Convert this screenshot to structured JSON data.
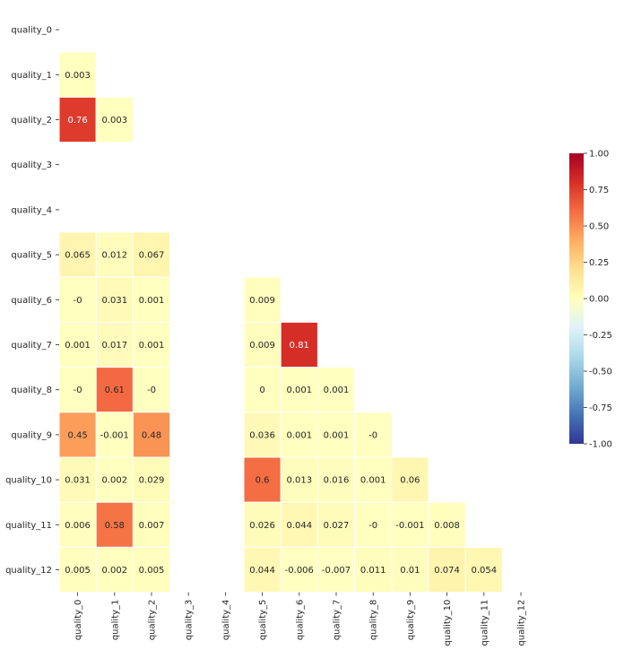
{
  "chart_data": {
    "type": "heatmap",
    "title": "",
    "xlabel": "",
    "ylabel": "",
    "mask": "upper-triangle-including-diagonal",
    "labels": [
      "quality_0",
      "quality_1",
      "quality_2",
      "quality_3",
      "quality_4",
      "quality_5",
      "quality_6",
      "quality_7",
      "quality_8",
      "quality_9",
      "quality_10",
      "quality_11",
      "quality_12"
    ],
    "colorscale": "RdYlBu_r",
    "vmin": -1.0,
    "vmax": 1.0,
    "colorbar_ticks": [
      "1.00",
      "0.75",
      "0.50",
      "0.25",
      "0.00",
      "-0.25",
      "-0.50",
      "-0.75",
      "-1.00"
    ],
    "colorbar_tick_values": [
      1.0,
      0.75,
      0.5,
      0.25,
      0.0,
      -0.25,
      -0.5,
      -0.75,
      -1.0
    ],
    "cells": [
      {
        "row": 1,
        "col": 0,
        "label": "0.003"
      },
      {
        "row": 2,
        "col": 0,
        "label": "0.76"
      },
      {
        "row": 2,
        "col": 1,
        "label": "0.003"
      },
      {
        "row": 5,
        "col": 0,
        "label": "0.065"
      },
      {
        "row": 5,
        "col": 1,
        "label": "0.012"
      },
      {
        "row": 5,
        "col": 2,
        "label": "0.067"
      },
      {
        "row": 6,
        "col": 0,
        "label": "-0"
      },
      {
        "row": 6,
        "col": 1,
        "label": "0.031"
      },
      {
        "row": 6,
        "col": 2,
        "label": "0.001"
      },
      {
        "row": 6,
        "col": 5,
        "label": "0.009"
      },
      {
        "row": 7,
        "col": 0,
        "label": "0.001"
      },
      {
        "row": 7,
        "col": 1,
        "label": "0.017"
      },
      {
        "row": 7,
        "col": 2,
        "label": "0.001"
      },
      {
        "row": 7,
        "col": 5,
        "label": "0.009"
      },
      {
        "row": 7,
        "col": 6,
        "label": "0.81"
      },
      {
        "row": 8,
        "col": 0,
        "label": "-0"
      },
      {
        "row": 8,
        "col": 1,
        "label": "0.61"
      },
      {
        "row": 8,
        "col": 2,
        "label": "-0"
      },
      {
        "row": 8,
        "col": 5,
        "label": "0"
      },
      {
        "row": 8,
        "col": 6,
        "label": "0.001"
      },
      {
        "row": 8,
        "col": 7,
        "label": "0.001"
      },
      {
        "row": 9,
        "col": 0,
        "label": "0.45"
      },
      {
        "row": 9,
        "col": 1,
        "label": "-0.001"
      },
      {
        "row": 9,
        "col": 2,
        "label": "0.48"
      },
      {
        "row": 9,
        "col": 5,
        "label": "0.036"
      },
      {
        "row": 9,
        "col": 6,
        "label": "0.001"
      },
      {
        "row": 9,
        "col": 7,
        "label": "0.001"
      },
      {
        "row": 9,
        "col": 8,
        "label": "-0"
      },
      {
        "row": 10,
        "col": 0,
        "label": "0.031"
      },
      {
        "row": 10,
        "col": 1,
        "label": "0.002"
      },
      {
        "row": 10,
        "col": 2,
        "label": "0.029"
      },
      {
        "row": 10,
        "col": 5,
        "label": "0.6"
      },
      {
        "row": 10,
        "col": 6,
        "label": "0.013"
      },
      {
        "row": 10,
        "col": 7,
        "label": "0.016"
      },
      {
        "row": 10,
        "col": 8,
        "label": "0.001"
      },
      {
        "row": 10,
        "col": 9,
        "label": "0.06"
      },
      {
        "row": 11,
        "col": 0,
        "label": "0.006"
      },
      {
        "row": 11,
        "col": 1,
        "label": "0.58"
      },
      {
        "row": 11,
        "col": 2,
        "label": "0.007"
      },
      {
        "row": 11,
        "col": 5,
        "label": "0.026"
      },
      {
        "row": 11,
        "col": 6,
        "label": "0.044"
      },
      {
        "row": 11,
        "col": 7,
        "label": "0.027"
      },
      {
        "row": 11,
        "col": 8,
        "label": "-0"
      },
      {
        "row": 11,
        "col": 9,
        "label": "-0.001"
      },
      {
        "row": 11,
        "col": 10,
        "label": "0.008"
      },
      {
        "row": 12,
        "col": 0,
        "label": "0.005"
      },
      {
        "row": 12,
        "col": 1,
        "label": "0.002"
      },
      {
        "row": 12,
        "col": 2,
        "label": "0.005"
      },
      {
        "row": 12,
        "col": 5,
        "label": "0.044"
      },
      {
        "row": 12,
        "col": 6,
        "label": "-0.006"
      },
      {
        "row": 12,
        "col": 7,
        "label": "-0.007"
      },
      {
        "row": 12,
        "col": 8,
        "label": "0.011"
      },
      {
        "row": 12,
        "col": 9,
        "label": "0.01"
      },
      {
        "row": 12,
        "col": 10,
        "label": "0.074"
      },
      {
        "row": 12,
        "col": 11,
        "label": "0.054"
      }
    ]
  }
}
